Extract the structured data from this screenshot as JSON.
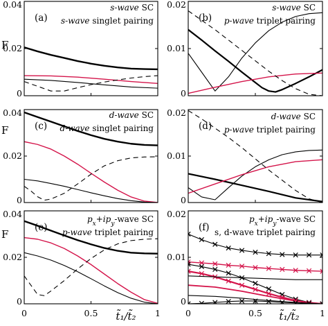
{
  "figure": {
    "ylabel": "F",
    "xlabel": "t̃₁/t̃₂"
  },
  "chart_data": [
    {
      "type": "line",
      "panel_label": "(a)",
      "annotation": [
        "s-wave SC",
        "s-wave singlet pairing"
      ],
      "xlim": [
        0,
        1
      ],
      "ylim": [
        0,
        0.04
      ],
      "yticks": [
        "0",
        "0.02",
        "0.04"
      ],
      "series": [
        {
          "color": "#000000",
          "width": 2.4,
          "dash": "",
          "x": [
            0,
            0.1,
            0.2,
            0.3,
            0.4,
            0.5,
            0.6,
            0.7,
            0.8,
            0.9,
            1.0
          ],
          "y": [
            0.0205,
            0.0188,
            0.0173,
            0.016,
            0.0147,
            0.0136,
            0.0127,
            0.012,
            0.0115,
            0.0113,
            0.0112
          ]
        },
        {
          "color": "#d4144a",
          "width": 1.4,
          "dash": "",
          "x": [
            0,
            0.2,
            0.4,
            0.6,
            0.8,
            1.0
          ],
          "y": [
            0.0085,
            0.0084,
            0.0079,
            0.007,
            0.006,
            0.0052
          ]
        },
        {
          "color": "#000000",
          "width": 1.1,
          "dash": "",
          "x": [
            0,
            0.2,
            0.4,
            0.6,
            0.8,
            1.0
          ],
          "y": [
            0.007,
            0.0065,
            0.0056,
            0.0046,
            0.0037,
            0.0032
          ]
        },
        {
          "color": "#000000",
          "width": 1.1,
          "dash": "7,5",
          "x": [
            0,
            0.1,
            0.2,
            0.3,
            0.4,
            0.5,
            0.6,
            0.7,
            0.8,
            0.9,
            1.0
          ],
          "y": [
            0.006,
            0.004,
            0.002,
            0.002,
            0.0034,
            0.0047,
            0.0058,
            0.0067,
            0.0075,
            0.0081,
            0.0085
          ]
        }
      ]
    },
    {
      "type": "line",
      "panel_label": "(b)",
      "annotation": [
        "s-wave SC",
        "p-wave triplet pairing"
      ],
      "xlim": [
        0,
        1
      ],
      "ylim": [
        0,
        0.02
      ],
      "yticks": [
        "0",
        "0.01",
        "0.02"
      ],
      "series": [
        {
          "color": "#000000",
          "width": 2.2,
          "dash": "",
          "x": [
            0,
            0.1,
            0.2,
            0.3,
            0.4,
            0.5,
            0.55,
            0.6,
            0.65,
            0.7,
            0.8,
            0.9,
            1.0
          ],
          "y": [
            0.014,
            0.0118,
            0.0095,
            0.0073,
            0.005,
            0.0028,
            0.0017,
            0.001,
            0.0008,
            0.0013,
            0.0026,
            0.004,
            0.0055
          ]
        },
        {
          "color": "#000000",
          "width": 1.1,
          "dash": "",
          "x": [
            0,
            0.1,
            0.2,
            0.3,
            0.4,
            0.5,
            0.6,
            0.7,
            0.8,
            0.9,
            1.0
          ],
          "y": [
            0.009,
            0.005,
            0.001,
            0.004,
            0.008,
            0.0112,
            0.0138,
            0.0156,
            0.0168,
            0.0174,
            0.0176
          ]
        },
        {
          "color": "#d4144a",
          "width": 1.4,
          "dash": "",
          "x": [
            0,
            0.2,
            0.4,
            0.6,
            0.8,
            1.0
          ],
          "y": [
            0.0005,
            0.0018,
            0.003,
            0.004,
            0.0046,
            0.0048
          ]
        },
        {
          "color": "#000000",
          "width": 1.1,
          "dash": "7,5",
          "x": [
            0,
            0.1,
            0.2,
            0.3,
            0.4,
            0.5,
            0.6,
            0.7,
            0.8,
            0.9,
            1.0
          ],
          "y": [
            0.018,
            0.016,
            0.014,
            0.0118,
            0.0096,
            0.0074,
            0.0052,
            0.0032,
            0.0015,
            0.0003,
            0.0
          ]
        }
      ]
    },
    {
      "type": "line",
      "panel_label": "(c)",
      "annotation": [
        "d-wave SC",
        "d-wave singlet pairing"
      ],
      "xlim": [
        0,
        1
      ],
      "ylim": [
        0,
        0.04
      ],
      "yticks": [
        "0",
        "0.02",
        "0.04"
      ],
      "series": [
        {
          "color": "#000000",
          "width": 2.4,
          "dash": "",
          "x": [
            0,
            0.1,
            0.2,
            0.3,
            0.4,
            0.5,
            0.6,
            0.7,
            0.8,
            0.9,
            1.0
          ],
          "y": [
            0.0388,
            0.0368,
            0.0348,
            0.0328,
            0.0308,
            0.029,
            0.0274,
            0.0262,
            0.0253,
            0.0248,
            0.0246
          ]
        },
        {
          "color": "#d4144a",
          "width": 1.4,
          "dash": "",
          "x": [
            0,
            0.1,
            0.2,
            0.3,
            0.4,
            0.5,
            0.6,
            0.7,
            0.8,
            0.9,
            1.0
          ],
          "y": [
            0.0262,
            0.025,
            0.023,
            0.02,
            0.0165,
            0.0126,
            0.0088,
            0.0053,
            0.0024,
            0.0006,
            0.0
          ]
        },
        {
          "color": "#000000",
          "width": 1.1,
          "dash": "",
          "x": [
            0,
            0.1,
            0.2,
            0.3,
            0.4,
            0.5,
            0.6,
            0.7,
            0.8,
            0.9,
            1.0
          ],
          "y": [
            0.01,
            0.0093,
            0.0082,
            0.007,
            0.0056,
            0.0042,
            0.0029,
            0.0017,
            0.0008,
            0.0002,
            0.0
          ]
        },
        {
          "color": "#000000",
          "width": 1.1,
          "dash": "7,5",
          "x": [
            0,
            0.05,
            0.1,
            0.15,
            0.2,
            0.3,
            0.4,
            0.5,
            0.6,
            0.7,
            0.8,
            0.9,
            1.0
          ],
          "y": [
            0.007,
            0.005,
            0.0025,
            0.001,
            0.0015,
            0.004,
            0.008,
            0.0122,
            0.0158,
            0.018,
            0.0192,
            0.0196,
            0.0197
          ]
        }
      ]
    },
    {
      "type": "line",
      "panel_label": "(d)",
      "annotation": [
        "d-wave SC",
        "p-wave triplet pairing"
      ],
      "xlim": [
        0,
        1
      ],
      "ylim": [
        0,
        0.02
      ],
      "yticks": [
        "0",
        "0.01",
        "0.02"
      ],
      "series": [
        {
          "color": "#000000",
          "width": 2.2,
          "dash": "",
          "x": [
            0,
            0.2,
            0.4,
            0.6,
            0.8,
            1.0
          ],
          "y": [
            0.0062,
            0.005,
            0.0037,
            0.0024,
            0.001,
            0.0002
          ]
        },
        {
          "color": "#000000",
          "width": 1.1,
          "dash": "",
          "x": [
            0,
            0.1,
            0.2,
            0.3,
            0.4,
            0.5,
            0.6,
            0.7,
            0.8,
            0.9,
            1.0
          ],
          "y": [
            0.0032,
            0.0012,
            0.0006,
            0.0032,
            0.0057,
            0.0077,
            0.0092,
            0.0103,
            0.0109,
            0.0112,
            0.0113
          ]
        },
        {
          "color": "#d4144a",
          "width": 1.4,
          "dash": "",
          "x": [
            0,
            0.2,
            0.4,
            0.6,
            0.8,
            1.0
          ],
          "y": [
            0.002,
            0.004,
            0.006,
            0.0077,
            0.0088,
            0.0092
          ]
        },
        {
          "color": "#000000",
          "width": 1.1,
          "dash": "7,5",
          "x": [
            0,
            0.1,
            0.2,
            0.3,
            0.4,
            0.5,
            0.6,
            0.7,
            0.8,
            0.9,
            1.0
          ],
          "y": [
            0.0198,
            0.018,
            0.016,
            0.014,
            0.0118,
            0.0094,
            0.007,
            0.0048,
            0.0026,
            0.0008,
            0.0
          ]
        }
      ]
    },
    {
      "type": "line",
      "panel_label": "(e)",
      "annotation": [
        "px+ipy-wave SC",
        "p-wave triplet pairing"
      ],
      "xlim": [
        0,
        1
      ],
      "ylim": [
        0,
        0.04
      ],
      "yticks": [
        "0",
        "0.02",
        "0.04"
      ],
      "series": [
        {
          "color": "#000000",
          "width": 2.4,
          "dash": "",
          "x": [
            0,
            0.1,
            0.2,
            0.3,
            0.4,
            0.5,
            0.6,
            0.7,
            0.8,
            0.9,
            1.0
          ],
          "y": [
            0.0356,
            0.0336,
            0.0315,
            0.0294,
            0.0274,
            0.0256,
            0.024,
            0.0228,
            0.022,
            0.0217,
            0.0216
          ]
        },
        {
          "color": "#d4144a",
          "width": 1.4,
          "dash": "",
          "x": [
            0,
            0.1,
            0.2,
            0.3,
            0.4,
            0.5,
            0.6,
            0.7,
            0.8,
            0.9,
            1.0
          ],
          "y": [
            0.0285,
            0.0278,
            0.0262,
            0.0238,
            0.0206,
            0.0169,
            0.0128,
            0.0087,
            0.005,
            0.0018,
            0.0002
          ]
        },
        {
          "color": "#000000",
          "width": 1.1,
          "dash": "",
          "x": [
            0,
            0.1,
            0.2,
            0.3,
            0.4,
            0.5,
            0.6,
            0.7,
            0.8,
            0.9,
            1.0
          ],
          "y": [
            0.022,
            0.0206,
            0.0188,
            0.0165,
            0.0138,
            0.0108,
            0.0077,
            0.0048,
            0.0024,
            0.0007,
            0.0
          ]
        },
        {
          "color": "#000000",
          "width": 1.1,
          "dash": "7,5",
          "x": [
            0,
            0.05,
            0.1,
            0.15,
            0.2,
            0.3,
            0.4,
            0.5,
            0.6,
            0.7,
            0.8,
            0.9,
            1.0
          ],
          "y": [
            0.012,
            0.008,
            0.004,
            0.0035,
            0.0055,
            0.01,
            0.015,
            0.0195,
            0.0232,
            0.0258,
            0.0272,
            0.0278,
            0.028
          ]
        }
      ]
    },
    {
      "type": "line",
      "panel_label": "(f)",
      "annotation": [
        "px+ipy-wave SC",
        "s, d-wave triplet pairing"
      ],
      "xlim": [
        0,
        1
      ],
      "ylim": [
        0,
        0.02
      ],
      "yticks": [
        "0",
        "0.01",
        "0.02"
      ],
      "series": [
        {
          "color": "#000000",
          "width": 1.1,
          "dash": "",
          "marker": "x",
          "x": [
            0,
            0.1,
            0.2,
            0.3,
            0.4,
            0.5,
            0.6,
            0.7,
            0.8,
            0.9,
            1.0
          ],
          "y": [
            0.015,
            0.0138,
            0.0128,
            0.012,
            0.0115,
            0.0111,
            0.0108,
            0.0106,
            0.0105,
            0.0105,
            0.0105
          ]
        },
        {
          "color": "#d4144a",
          "width": 1.4,
          "dash": "",
          "marker": "x",
          "x": [
            0,
            0.1,
            0.2,
            0.3,
            0.4,
            0.5,
            0.6,
            0.7,
            0.8,
            0.9,
            1.0
          ],
          "y": [
            0.009,
            0.0088,
            0.0086,
            0.0083,
            0.0081,
            0.0078,
            0.0076,
            0.0074,
            0.0072,
            0.0071,
            0.007
          ]
        },
        {
          "color": "#000000",
          "width": 1.1,
          "dash": "",
          "marker": "x",
          "x": [
            0,
            0.1,
            0.2,
            0.3,
            0.4,
            0.5,
            0.6,
            0.7,
            0.8,
            0.9,
            1.0
          ],
          "y": [
            0.0085,
            0.008,
            0.0074,
            0.0066,
            0.0056,
            0.0044,
            0.0032,
            0.002,
            0.001,
            0.0003,
            0.0
          ]
        },
        {
          "color": "#d4144a",
          "width": 2.2,
          "dash": "",
          "marker": "x",
          "x": [
            0,
            0.1,
            0.2,
            0.3,
            0.4,
            0.5,
            0.6,
            0.7,
            0.8,
            0.9,
            1.0
          ],
          "y": [
            0.007,
            0.0065,
            0.0058,
            0.0049,
            0.004,
            0.0031,
            0.0022,
            0.0014,
            0.0007,
            0.0002,
            0.0
          ]
        },
        {
          "color": "#000000",
          "width": 1.1,
          "dash": "",
          "x": [
            0,
            0.2,
            0.4,
            0.6,
            0.8,
            1.0
          ],
          "y": [
            0.006,
            0.0058,
            0.0056,
            0.0054,
            0.0052,
            0.0052
          ]
        },
        {
          "color": "#d4144a",
          "width": 1.8,
          "dash": "",
          "x": [
            0,
            0.2,
            0.4,
            0.6,
            0.8,
            1.0
          ],
          "y": [
            0.004,
            0.0036,
            0.0027,
            0.0016,
            0.0006,
            0.0
          ]
        },
        {
          "color": "#000000",
          "width": 1.1,
          "dash": "",
          "x": [
            0,
            0.2,
            0.4,
            0.6,
            0.8,
            1.0
          ],
          "y": [
            0.0018,
            0.0016,
            0.0012,
            0.0007,
            0.0003,
            0.0
          ]
        },
        {
          "color": "#000000",
          "width": 1.1,
          "dash": "",
          "marker": "x",
          "x": [
            0,
            0.1,
            0.2,
            0.3,
            0.4,
            0.5,
            0.6,
            0.7,
            0.8,
            0.9,
            1.0
          ],
          "y": [
            0.0,
            0.0001,
            0.0003,
            0.0005,
            0.0006,
            0.0006,
            0.0005,
            0.0003,
            0.0002,
            0.0001,
            0.0
          ]
        }
      ]
    }
  ]
}
